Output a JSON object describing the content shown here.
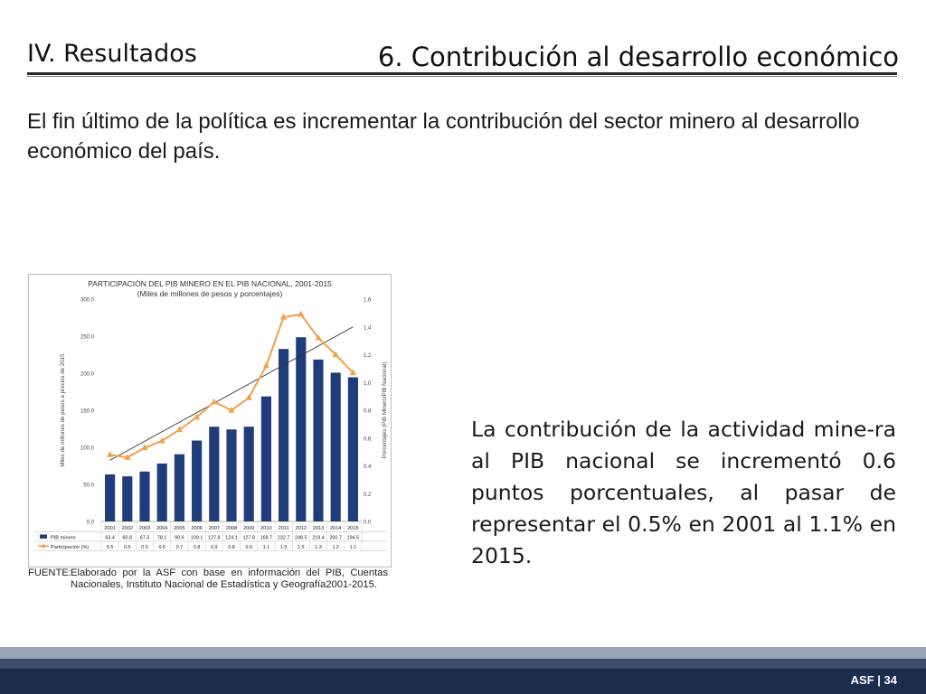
{
  "header": {
    "section": "IV. Resultados",
    "title": "6. Contribución al desarrollo económico"
  },
  "intro_text": "El fin último de la política es incrementar la contribución del sector minero al desarrollo económico del país.",
  "chart_data": {
    "type": "bar",
    "title": "PARTICIPACIÓN DEL PIB MINERO EN EL PIB NACIONAL, 2001-2015",
    "subtitle": "(Miles de millones de pesos y porcentajes)",
    "ylabel": "Miles de millones de pesos a precios de 2015",
    "y2label": "Porcentajes (PIB Minero/PIB Nacional)",
    "ylim": [
      0,
      300
    ],
    "y2lim": [
      0,
      1.6
    ],
    "yticks": [
      "0.0",
      "50.0",
      "100.0",
      "150.0",
      "200.0",
      "250.0",
      "300.0"
    ],
    "y2ticks": [
      "0.0",
      "0.2",
      "0.4",
      "0.6",
      "0.8",
      "1.0",
      "1.2",
      "1.4",
      "1.6"
    ],
    "categories": [
      "2001",
      "2002",
      "2003",
      "2004",
      "2005",
      "2006",
      "2007",
      "2008",
      "2009",
      "2010",
      "2011",
      "2012",
      "2013",
      "2014",
      "2015"
    ],
    "series": [
      {
        "name": "PIB minero",
        "type": "bar",
        "axis": "left",
        "color": "#1f3d7a",
        "values": [
          63.4,
          60.8,
          67.3,
          78.1,
          90.6,
          109.1,
          127.8,
          124.1,
          127.8,
          168.7,
          232.7,
          248.5,
          218.4,
          200.7,
          194.5
        ],
        "labels": [
          "63.4",
          "60.8",
          "67.3",
          "78.1",
          "90.6",
          "109.1",
          "127.8",
          "124.1",
          "127.8",
          "168.7",
          "232.7",
          "248.5",
          "218.4",
          "200.7",
          "194.5"
        ]
      },
      {
        "name": "Participación (%)",
        "type": "line",
        "axis": "right",
        "color": "#f0a04b",
        "values": [
          0.48,
          0.46,
          0.53,
          0.58,
          0.66,
          0.75,
          0.86,
          0.8,
          0.89,
          1.12,
          1.47,
          1.49,
          1.32,
          1.2,
          1.07
        ],
        "labels": [
          "0.5",
          "0.5",
          "0.5",
          "0.6",
          "0.7",
          "0.8",
          "0.9",
          "0.8",
          "0.9",
          "1.1",
          "1.5",
          "1.5",
          "1.3",
          "1.2",
          "1.1"
        ]
      }
    ],
    "trendline": {
      "color": "#333333",
      "from": 0.44,
      "to": 1.4
    }
  },
  "source": {
    "label": "FUENTE:",
    "text": "Elaborado por la ASF con base en información del PIB, Cuentas Nacionales, Instituto Nacional de Estadística y Geografía2001-2015."
  },
  "conclusion": "La contribución de la actividad mine-ra al PIB nacional se incrementó 0.6 puntos porcentuales, al pasar de representar el 0.5% en 2001 al 1.1% en 2015.",
  "footer": {
    "label": "ASF | 34"
  }
}
